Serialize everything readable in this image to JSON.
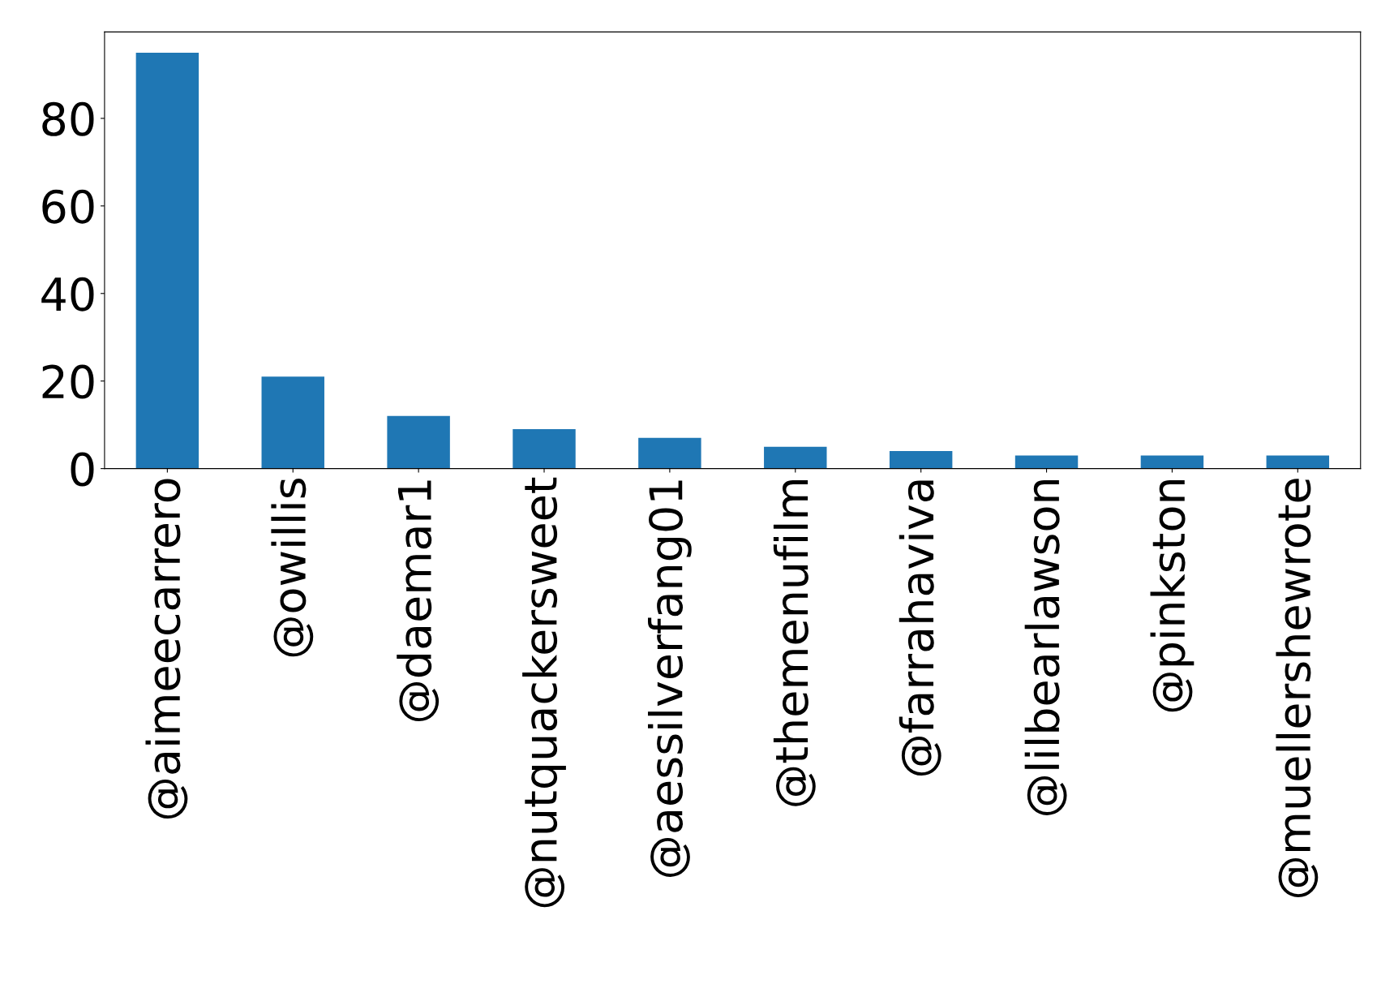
{
  "chart_data": {
    "type": "bar",
    "categories": [
      "@aimeecarrero",
      "@owillis",
      "@daemar1",
      "@nutquackersweet",
      "@aessilverfang01",
      "@themenufilm",
      "@farrahaviva",
      "@lilbearlawson",
      "@pinkston",
      "@muellershewrote"
    ],
    "values": [
      95,
      21,
      12,
      9,
      7,
      5,
      4,
      3,
      3,
      3
    ],
    "color": "#1f77b4",
    "ylim": [
      0,
      99.75
    ],
    "yticks": [
      0,
      20,
      40,
      60,
      80
    ],
    "grid": false
  }
}
